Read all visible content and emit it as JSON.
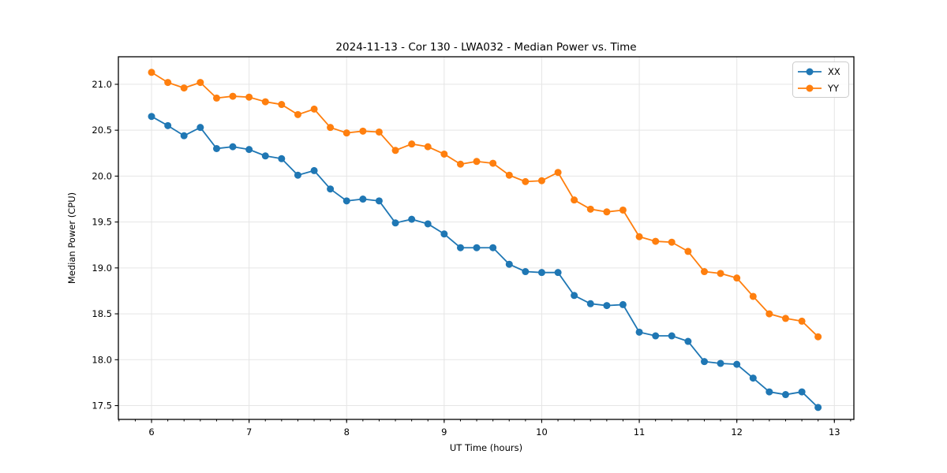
{
  "chart_data": {
    "type": "line",
    "title": "2024-11-13 - Cor 130 - LWA032 - Median Power vs. Time",
    "xlabel": "UT Time (hours)",
    "ylabel": "Median Power (CPU)",
    "grid": true,
    "legend_position": "upper right",
    "x": [
      6.0,
      6.167,
      6.333,
      6.5,
      6.667,
      6.833,
      7.0,
      7.167,
      7.333,
      7.5,
      7.667,
      7.833,
      8.0,
      8.167,
      8.333,
      8.5,
      8.667,
      8.833,
      9.0,
      9.167,
      9.333,
      9.5,
      9.667,
      9.833,
      10.0,
      10.167,
      10.333,
      10.5,
      10.667,
      10.833,
      11.0,
      11.167,
      11.333,
      11.5,
      11.667,
      11.833,
      12.0,
      12.167,
      12.333,
      12.5,
      12.667,
      12.833
    ],
    "series": [
      {
        "name": "XX",
        "color": "#1f77b4",
        "values": [
          20.65,
          20.55,
          20.44,
          20.53,
          20.3,
          20.32,
          20.29,
          20.22,
          20.19,
          20.01,
          20.06,
          19.86,
          19.73,
          19.75,
          19.73,
          19.49,
          19.53,
          19.48,
          19.37,
          19.22,
          19.22,
          19.22,
          19.04,
          18.96,
          18.95,
          18.95,
          18.7,
          18.61,
          18.59,
          18.6,
          18.3,
          18.26,
          18.26,
          18.2,
          17.98,
          17.96,
          17.95,
          17.8,
          17.65,
          17.62,
          17.65,
          17.48
        ]
      },
      {
        "name": "YY",
        "color": "#ff7f0e",
        "values": [
          21.13,
          21.02,
          20.96,
          21.02,
          20.85,
          20.87,
          20.86,
          20.81,
          20.78,
          20.67,
          20.73,
          20.53,
          20.47,
          20.49,
          20.48,
          20.28,
          20.35,
          20.32,
          20.24,
          20.13,
          20.16,
          20.14,
          20.01,
          19.94,
          19.95,
          20.04,
          19.74,
          19.64,
          19.61,
          19.63,
          19.34,
          19.29,
          19.28,
          19.18,
          18.96,
          18.94,
          18.89,
          18.69,
          18.5,
          18.45,
          18.42,
          18.25
        ]
      }
    ],
    "axes": {
      "xlim": [
        5.66,
        13.2
      ],
      "ylim": [
        17.35,
        21.3
      ],
      "xticks": [
        6,
        7,
        8,
        9,
        10,
        11,
        12,
        13
      ],
      "xtick_labels": [
        "6",
        "7",
        "8",
        "9",
        "10",
        "11",
        "12",
        "13"
      ],
      "x_minor_step": 0.1666667,
      "yticks": [
        17.5,
        18.0,
        18.5,
        19.0,
        19.5,
        20.0,
        20.5,
        21.0
      ],
      "ytick_labels": [
        "17.5",
        "18.0",
        "18.5",
        "19.0",
        "19.5",
        "20.0",
        "20.5",
        "21.0"
      ],
      "grid_color": "#e5e5e5",
      "spine_color": "#000000",
      "background": "#ffffff"
    }
  }
}
